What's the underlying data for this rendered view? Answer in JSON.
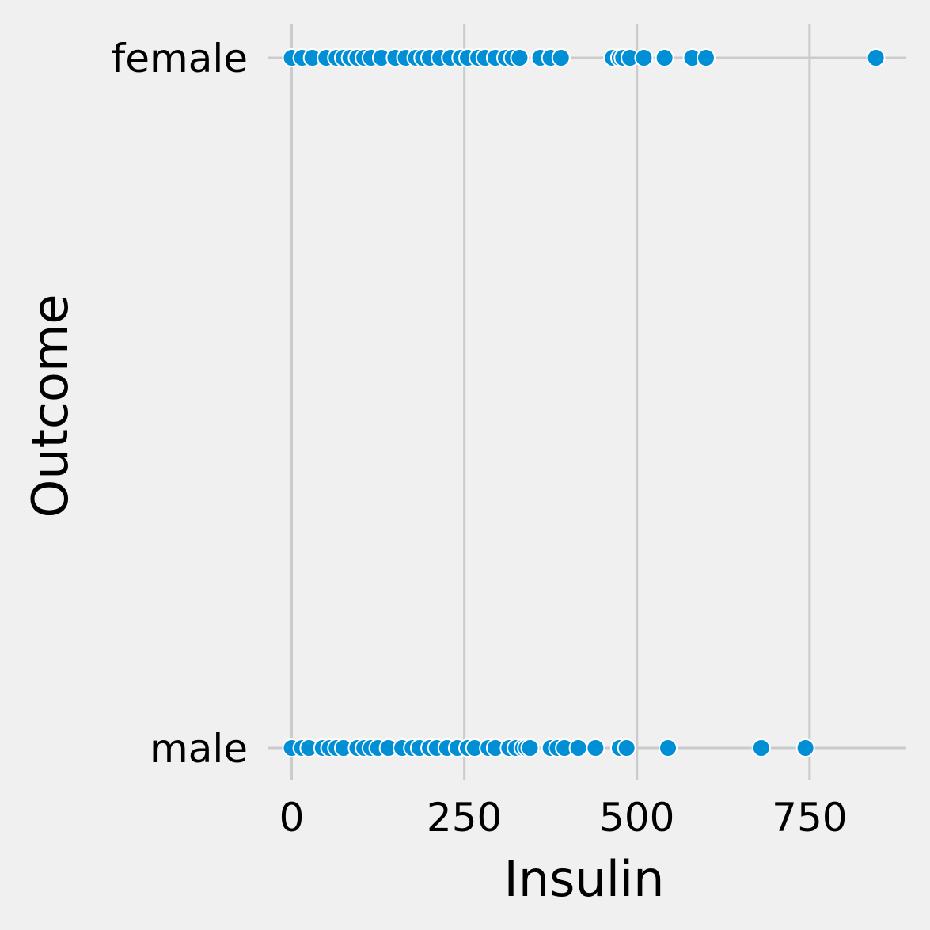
{
  "chart_data": {
    "type": "scatter",
    "title": "",
    "xlabel": "Insulin",
    "ylabel": "Outcome",
    "xlim": [
      -35,
      890
    ],
    "x_ticks": [
      0,
      250,
      500,
      750
    ],
    "categories": [
      "female",
      "male"
    ],
    "grid": true,
    "point_color": "#008fd5",
    "point_edge_color": "#ffffff",
    "background_color": "#f0f0f0",
    "grid_color": "#cbcbcb",
    "series": [
      {
        "category": "female",
        "x": [
          0,
          15,
          30,
          50,
          65,
          75,
          85,
          95,
          105,
          115,
          130,
          150,
          165,
          180,
          190,
          200,
          215,
          230,
          245,
          255,
          270,
          280,
          295,
          310,
          320,
          330,
          360,
          375,
          390,
          465,
          475,
          480,
          490,
          510,
          540,
          580,
          600,
          846
        ]
      },
      {
        "category": "male",
        "x": [
          0,
          15,
          25,
          45,
          55,
          65,
          75,
          95,
          105,
          115,
          125,
          140,
          160,
          175,
          185,
          200,
          210,
          225,
          240,
          255,
          265,
          285,
          295,
          315,
          325,
          335,
          340,
          345,
          375,
          385,
          395,
          415,
          440,
          475,
          485,
          545,
          680,
          744
        ]
      }
    ]
  }
}
